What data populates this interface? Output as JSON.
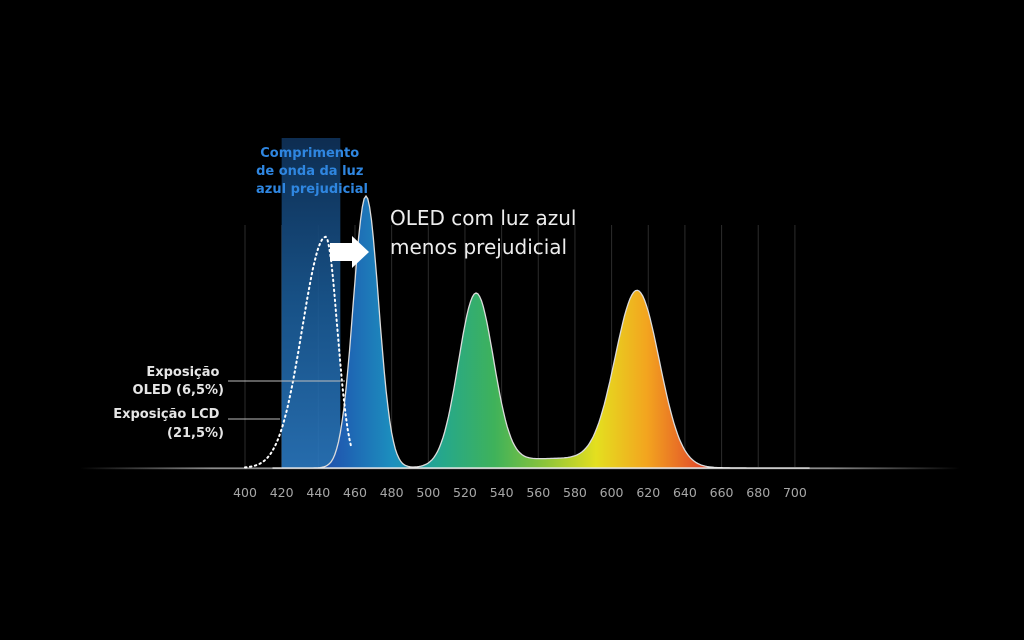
{
  "chart_data": {
    "type": "area",
    "title": "",
    "xlabel": "",
    "ylabel": "",
    "x_ticks": [
      400,
      420,
      440,
      460,
      480,
      500,
      520,
      540,
      560,
      580,
      600,
      620,
      640,
      660,
      680,
      700
    ],
    "xlim": [
      400,
      700
    ],
    "grid": "vertical",
    "highlight_band": {
      "x": [
        420,
        452
      ],
      "label": [
        "Comprimento",
        "de onda da luz",
        "azul prejudicial"
      ]
    },
    "headline": [
      "OLED com luz azul",
      "menos prejudicial"
    ],
    "annotations": [
      {
        "lines": [
          "Exposição",
          "OLED (6,5%)"
        ]
      },
      {
        "lines": [
          "Exposição LCD",
          "(21,5%)"
        ]
      }
    ],
    "series": [
      {
        "style": "filled-spectrum",
        "peaks": [
          {
            "x": 466,
            "y": 1.0
          },
          {
            "x": 526,
            "y": 0.63
          },
          {
            "x": 614,
            "y": 0.64
          }
        ],
        "valleys": [
          {
            "x": 496,
            "y": 0.04
          },
          {
            "x": 578,
            "y": 0.02
          }
        ]
      },
      {
        "style": "dotted",
        "peak": {
          "x": 444,
          "y": 0.85
        }
      }
    ]
  },
  "colors": {
    "background": "#000000",
    "band": "#1f6fbf",
    "spectrum": [
      "#2a2c8f",
      "#233a9e",
      "#1f5fb2",
      "#1c8fbe",
      "#26a88a",
      "#3fb25a",
      "#8cc43a",
      "#e4df1f",
      "#f3a41f",
      "#e2502a",
      "#d82a27",
      "#c4201f"
    ],
    "annotation_blue": "#2f86e0"
  }
}
